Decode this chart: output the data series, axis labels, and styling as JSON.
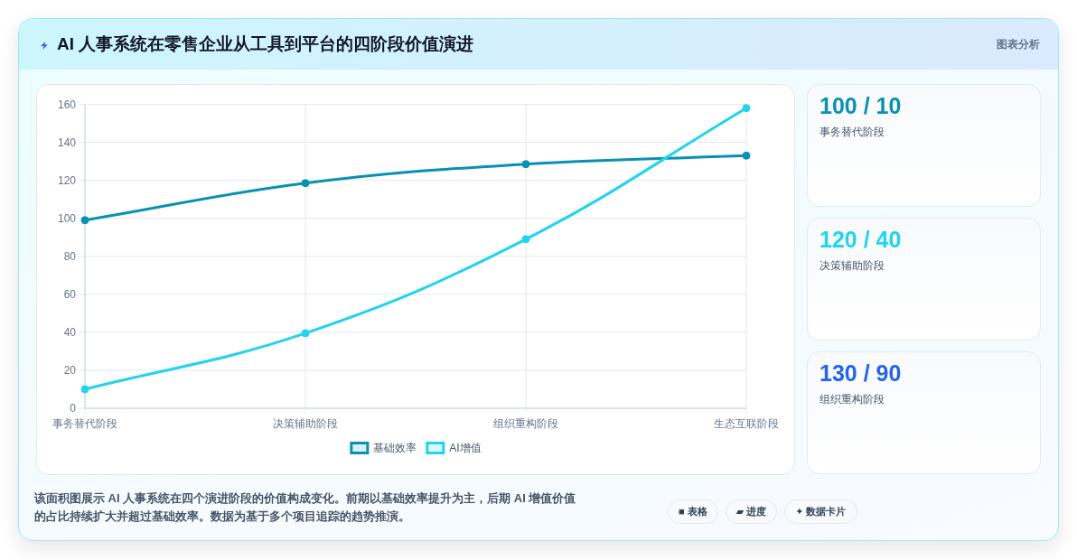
{
  "chart_data": [
    {
      "type": "line",
      "title": "AI 人事系统在零售企业从工具到平台的四阶段价值演进",
      "categories": [
        "事务替代阶段",
        "决策辅助阶段",
        "组织重构阶段",
        "生态互联阶段"
      ],
      "series": [
        {
          "name": "基础效率",
          "color": "#0891b2",
          "values": [
            99,
            118.5,
            128.5,
            133
          ]
        },
        {
          "name": "AI增值",
          "color": "#22d3ee",
          "values": [
            10,
            39.5,
            89,
            158
          ]
        }
      ],
      "ylim": [
        0,
        160
      ],
      "yticks": [
        0,
        20,
        40,
        60,
        80,
        100,
        120,
        140,
        160
      ],
      "grid": true,
      "legend": "bottom",
      "marker": "circle",
      "annotations": [
        "图表分析",
        "该面积图展示 AI 人事系统在四个演进阶段的价值构成变化。前期以基础效率提升为主，后期 AI 增值价值的占比持续扩大并超过基础效率。数据为基于多个项目追踪的趋势推演。",
        "■ 表格",
        "▰ 进度",
        "✦ 数据卡片"
      ]
    },
    {
      "type": "other",
      "annotations": [
        "100 / 10",
        "事务替代阶段",
        "120 / 40",
        "决策辅助阶段",
        "130 / 90",
        "组织重构阶段"
      ]
    }
  ]
}
